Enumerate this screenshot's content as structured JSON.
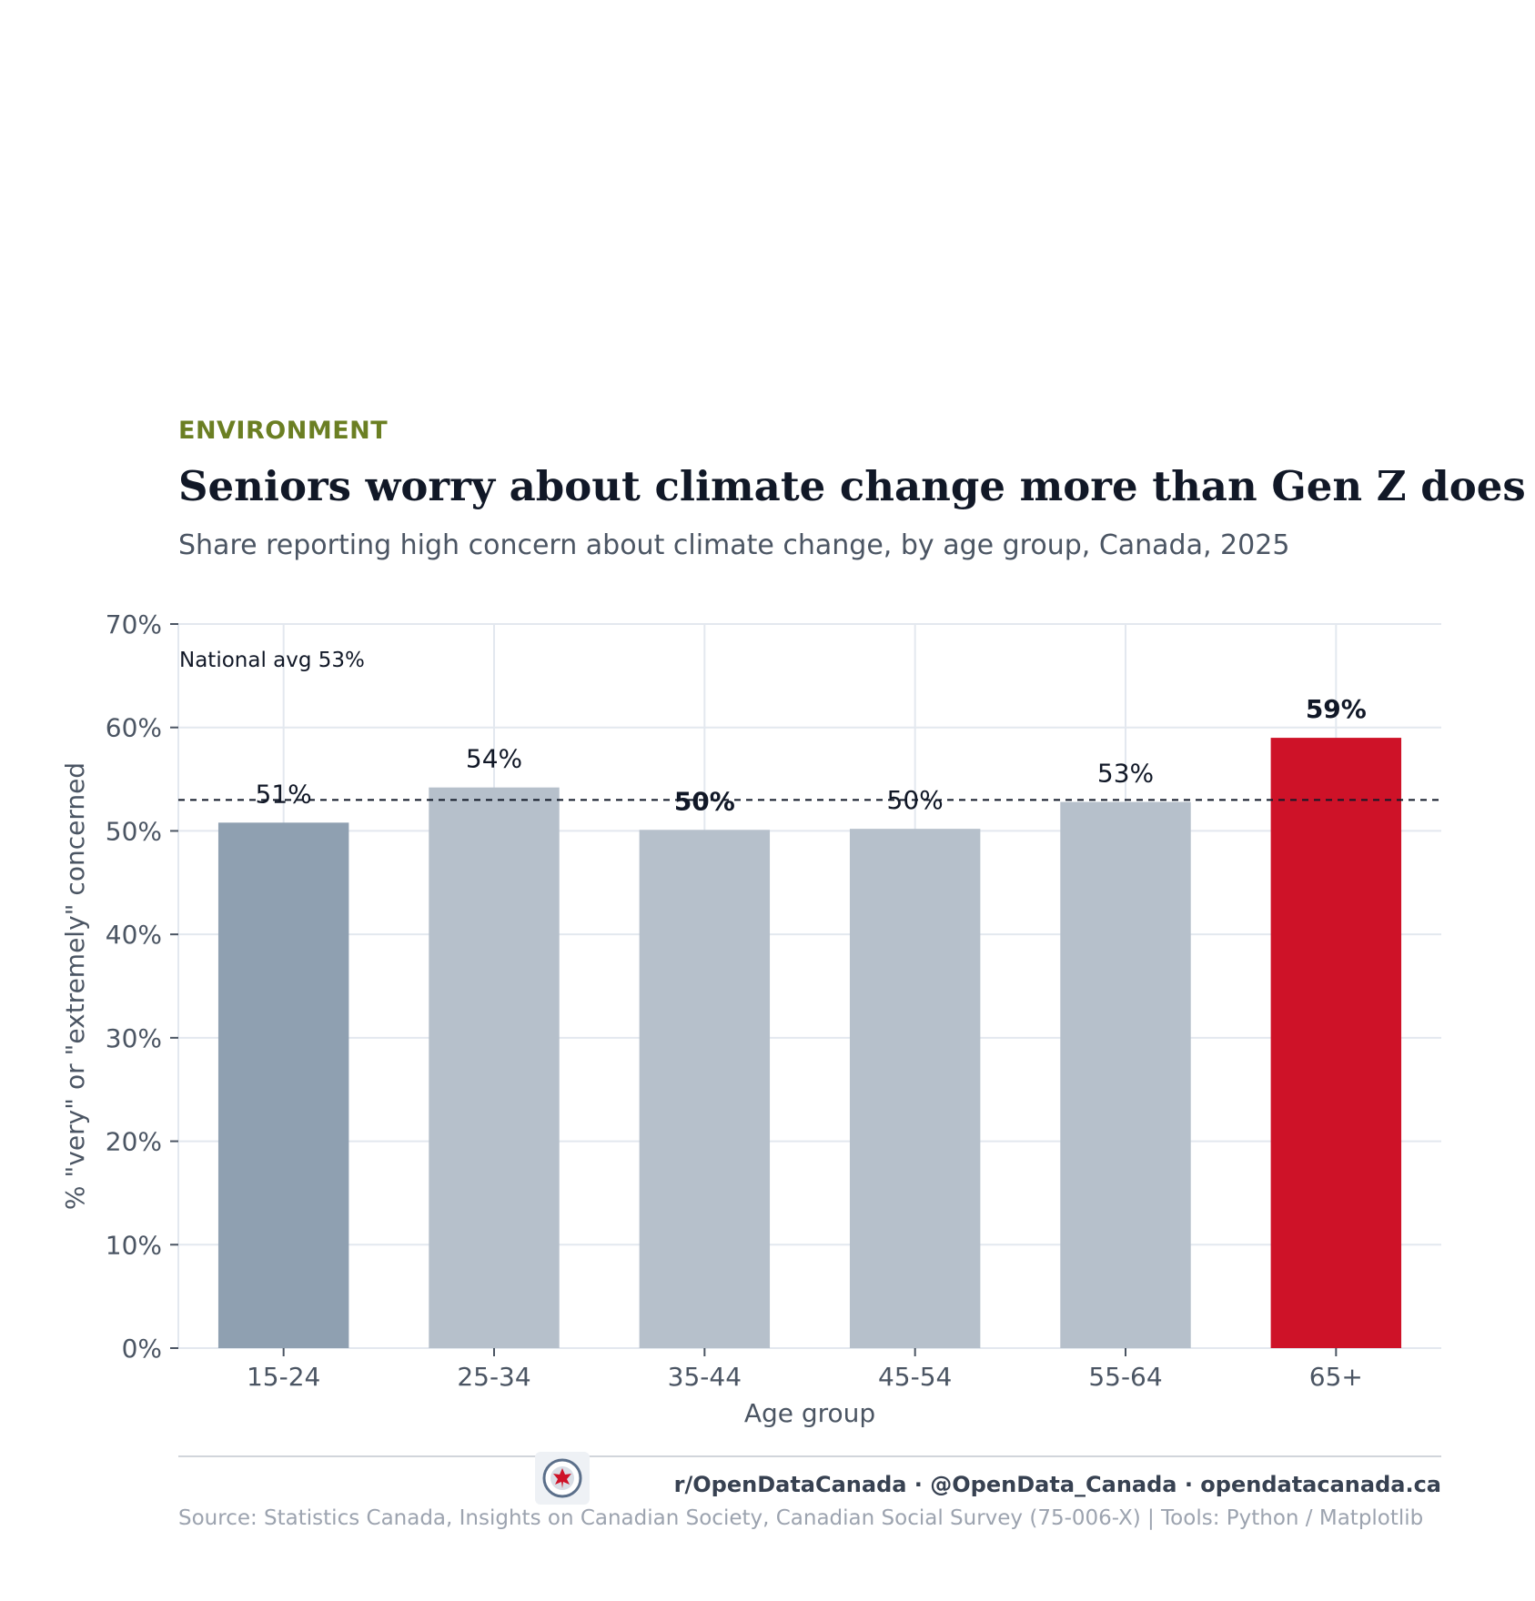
{
  "header": {
    "kicker": "ENVIRONMENT",
    "title": "Seniors worry about climate change more than Gen Z does",
    "subtitle": "Share reporting high concern about climate change, by age group, Canada, 2025"
  },
  "chart_data": {
    "type": "bar",
    "categories": [
      "15-24",
      "25-34",
      "35-44",
      "45-54",
      "55-64",
      "65+"
    ],
    "values": [
      50.8,
      54.2,
      50.1,
      50.2,
      52.8,
      59.0
    ],
    "data_labels": [
      "51%",
      "54%",
      "50%",
      "50%",
      "53%",
      "59%"
    ],
    "label_bold": [
      false,
      false,
      true,
      false,
      false,
      true
    ],
    "bar_colors": [
      "#8fa0b1",
      "#b6c0cb",
      "#b6c0cb",
      "#b6c0cb",
      "#b6c0cb",
      "#ce1228"
    ],
    "xlabel": "Age group",
    "ylabel": "% \"very\" or \"extremely\" concerned",
    "ylim": [
      0,
      70
    ],
    "yticks": [
      0,
      10,
      20,
      30,
      40,
      50,
      60,
      70
    ],
    "ytick_labels": [
      "0%",
      "10%",
      "20%",
      "30%",
      "40%",
      "50%",
      "60%",
      "70%"
    ],
    "grid": true,
    "reference_line": {
      "value": 53,
      "label": "National avg 53%",
      "style": "dashed"
    }
  },
  "footer": {
    "social": "r/OpenDataCanada  ·  @OpenData_Canada  ·  opendatacanada.ca",
    "source": "Source: Statistics Canada, Insights on Canadian Society, Canadian Social Survey (75-006-X)  |  Tools: Python / Matplotlib"
  }
}
